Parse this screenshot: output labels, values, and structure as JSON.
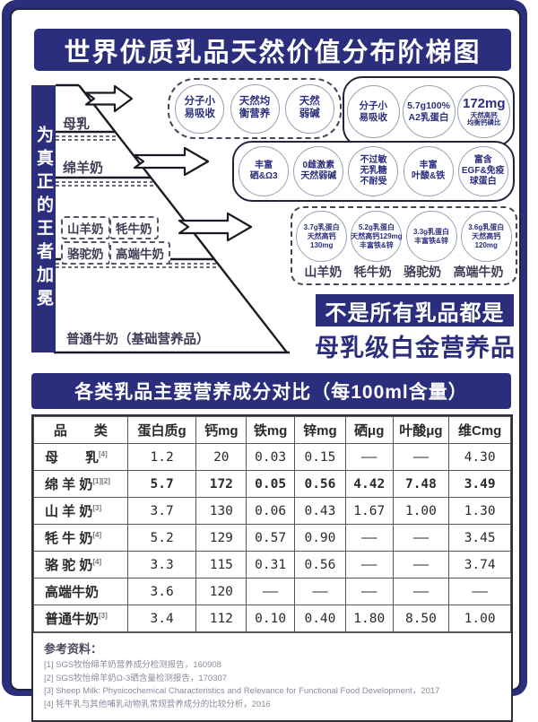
{
  "title": "世界优质乳品天然价值分布阶梯图",
  "accent_color": "#2b2e7d",
  "ladder": {
    "side_label": "为真正的王者加冕",
    "tier1_label": "母乳",
    "tier2_label": "绵羊奶",
    "tier3_labels": [
      "山羊奶",
      "牦牛奶",
      "骆驼奶",
      "高端牛奶"
    ],
    "base_label": "普通牛奶（基础营养品）"
  },
  "badge_groups": [
    {
      "id": "breast-milk-badges",
      "style": "dashed",
      "circles": [
        {
          "lines": [
            "分子小",
            "易吸收"
          ]
        },
        {
          "lines": [
            "天然均",
            "衡营养"
          ]
        },
        {
          "lines": [
            "天然",
            "弱碱"
          ]
        }
      ]
    },
    {
      "id": "sheep-milk-badges-top",
      "style": "solid",
      "circles": [
        {
          "lines": [
            "分子小",
            "易吸收"
          ]
        },
        {
          "lines": [
            "5.7g100%",
            "A2乳蛋白"
          ]
        },
        {
          "lines": [
            "172mg",
            "天然高钙",
            "均衡钙磷比"
          ],
          "large_first": true
        }
      ]
    },
    {
      "id": "sheep-milk-badges-row",
      "style": "solid",
      "circles": [
        {
          "lines": [
            "丰富",
            "硒&Ω3"
          ]
        },
        {
          "lines": [
            "0雌激素",
            "天然弱碱"
          ]
        },
        {
          "lines": [
            "不过敏",
            "无乳糖",
            "不耐受"
          ]
        },
        {
          "lines": [
            "丰富",
            "叶酸&铁"
          ]
        },
        {
          "lines": [
            "富含",
            "EGF&免疫",
            "球蛋白"
          ]
        }
      ]
    },
    {
      "id": "other-milk-badges",
      "style": "dashed",
      "circles": [
        {
          "lines": [
            "3.7g乳蛋白",
            "天然高钙",
            "130mg"
          ]
        },
        {
          "lines": [
            "5.2g乳蛋白",
            "天然高钙129mg",
            "丰富铁&锌"
          ]
        },
        {
          "lines": [
            "3.3g乳蛋白",
            "丰富铁&锌"
          ]
        },
        {
          "lines": [
            "3.6g乳蛋白",
            "天然高钙",
            "120mg"
          ]
        }
      ],
      "labels": [
        "山羊奶",
        "牦牛奶",
        "骆驼奶",
        "高端牛奶"
      ]
    }
  ],
  "slogan": {
    "line1": "不是所有乳品都是",
    "line2": "母乳级白金营养品"
  },
  "table": {
    "title": "各类乳品主要营养成分对比（每100ml含量）",
    "headers": [
      "品　　类",
      "蛋白质g",
      "钙mg",
      "铁mg",
      "锌mg",
      "硒μg",
      "叶酸μg",
      "维Cmg"
    ],
    "rows": [
      {
        "name": "母　　乳",
        "refs": "[4]",
        "bold": false,
        "values": [
          "1.2",
          "20",
          "0.03",
          "0.15",
          "——",
          "——",
          "4.30"
        ]
      },
      {
        "name": "绵 羊 奶",
        "refs": "[1][2]",
        "bold": true,
        "values": [
          "5.7",
          "172",
          "0.05",
          "0.56",
          "4.42",
          "7.48",
          "3.49"
        ]
      },
      {
        "name": "山 羊 奶",
        "refs": "[3]",
        "bold": false,
        "values": [
          "3.7",
          "130",
          "0.06",
          "0.43",
          "1.67",
          "1.00",
          "1.30"
        ]
      },
      {
        "name": "牦 牛 奶",
        "refs": "[4]",
        "bold": false,
        "values": [
          "5.2",
          "129",
          "0.57",
          "0.90",
          "——",
          "——",
          "3.45"
        ]
      },
      {
        "name": "骆 驼 奶",
        "refs": "[4]",
        "bold": false,
        "values": [
          "3.3",
          "115",
          "0.31",
          "0.56",
          "——",
          "——",
          "3.74"
        ]
      },
      {
        "name": "高端牛奶",
        "refs": "",
        "bold": false,
        "values": [
          "3.6",
          "120",
          "——",
          "——",
          "——",
          "——",
          "——"
        ]
      },
      {
        "name": "普通牛奶",
        "refs": "[3]",
        "bold": false,
        "values": [
          "3.4",
          "112",
          "0.10",
          "0.40",
          "1.80",
          "8.50",
          "1.00"
        ]
      }
    ]
  },
  "references": {
    "title": "参考资料：",
    "items": [
      "[1] SGS牧怡绵羊奶营养成分检测报告，160908",
      "[2] SGS牧怡绵羊奶Ω-3硒含量检测报告，170307",
      "[3] Sheep Milk: Physicochemical Characteristics and Relevance for Functional Food Development，2017",
      "[4] 牦牛乳与其他哺乳动物乳常规营养成分的比较分析，2016"
    ]
  }
}
